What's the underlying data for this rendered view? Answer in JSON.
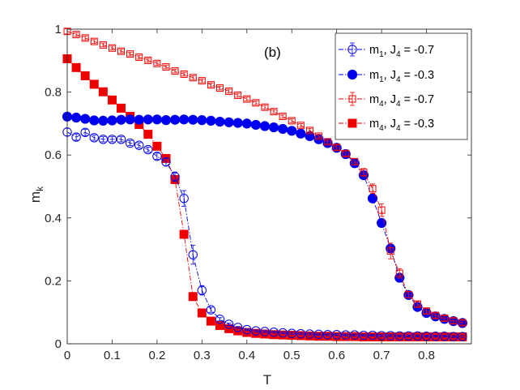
{
  "chart_data": {
    "type": "line",
    "panel_label": "(b)",
    "xlabel": "T",
    "ylabel": {
      "main": "m",
      "sub": "k"
    },
    "xlim": [
      0,
      0.9
    ],
    "ylim": [
      0,
      1
    ],
    "xticks": [
      0,
      0.1,
      0.2,
      0.3,
      0.4,
      0.5,
      0.6,
      0.7,
      0.8
    ],
    "yticks": [
      0,
      0.2,
      0.4,
      0.6,
      0.8,
      1
    ],
    "xtick_labels": [
      "0",
      "0.1",
      "0.2",
      "0.3",
      "0.4",
      "0.5",
      "0.6",
      "0.7",
      "0.8"
    ],
    "ytick_labels": [
      "0",
      "0.2",
      "0.4",
      "0.6",
      "0.8",
      "1"
    ],
    "legend_position": "top-right",
    "colors": {
      "blue": "#0000ee",
      "red": "#ee0000",
      "axis": "#262626"
    },
    "series": [
      {
        "name": "m1, J4 = -0.7",
        "legend": {
          "m": "m",
          "m_sub": "1",
          "mid": ", J",
          "j_sub": "4",
          "tail": " = -0.7"
        },
        "color": "#0000ee",
        "marker": "circle",
        "filled": false,
        "x": [
          0.0,
          0.02,
          0.04,
          0.06,
          0.08,
          0.1,
          0.12,
          0.14,
          0.16,
          0.18,
          0.2,
          0.22,
          0.24,
          0.26,
          0.28,
          0.3,
          0.32,
          0.34,
          0.36,
          0.38,
          0.4,
          0.42,
          0.44,
          0.46,
          0.48,
          0.5,
          0.52,
          0.54,
          0.56,
          0.58,
          0.6,
          0.62,
          0.64,
          0.66,
          0.68,
          0.7,
          0.72,
          0.74,
          0.76,
          0.78,
          0.8,
          0.82,
          0.84,
          0.86,
          0.88
        ],
        "y": [
          0.673,
          0.657,
          0.672,
          0.655,
          0.65,
          0.65,
          0.65,
          0.638,
          0.631,
          0.617,
          0.596,
          0.578,
          0.531,
          0.462,
          0.283,
          0.17,
          0.108,
          0.078,
          0.062,
          0.052,
          0.045,
          0.041,
          0.039,
          0.037,
          0.035,
          0.033,
          0.032,
          0.031,
          0.03,
          0.029,
          0.029,
          0.028,
          0.028,
          0.027,
          0.027,
          0.026,
          0.026,
          0.025,
          0.025,
          0.025,
          0.024,
          0.024,
          0.024,
          0.023,
          0.023
        ],
        "err": [
          0.012,
          0.01,
          0.01,
          0.008,
          0.008,
          0.008,
          0.008,
          0.008,
          0.008,
          0.008,
          0.01,
          0.012,
          0.015,
          0.025,
          0.03,
          0.015,
          0.008,
          0.005,
          0.004,
          0.003,
          0.003,
          0.003,
          0.003,
          0.003,
          0.003,
          0.003,
          0.003,
          0.003,
          0.003,
          0.003,
          0.003,
          0.003,
          0.003,
          0.003,
          0.003,
          0.003,
          0.003,
          0.003,
          0.003,
          0.003,
          0.003,
          0.003,
          0.003,
          0.003,
          0.003
        ]
      },
      {
        "name": "m1, J4 = -0.3",
        "legend": {
          "m": "m",
          "m_sub": "1",
          "mid": ", J",
          "j_sub": "4",
          "tail": " = -0.3"
        },
        "color": "#0000ee",
        "marker": "circle",
        "filled": true,
        "x": [
          0.0,
          0.02,
          0.04,
          0.06,
          0.08,
          0.1,
          0.12,
          0.14,
          0.16,
          0.18,
          0.2,
          0.22,
          0.24,
          0.26,
          0.28,
          0.3,
          0.32,
          0.34,
          0.36,
          0.38,
          0.4,
          0.42,
          0.44,
          0.46,
          0.48,
          0.5,
          0.52,
          0.54,
          0.56,
          0.58,
          0.6,
          0.62,
          0.64,
          0.66,
          0.68,
          0.7,
          0.72,
          0.74,
          0.76,
          0.78,
          0.8,
          0.82,
          0.84,
          0.86,
          0.88
        ],
        "y": [
          0.722,
          0.719,
          0.715,
          0.71,
          0.709,
          0.71,
          0.712,
          0.713,
          0.712,
          0.713,
          0.713,
          0.711,
          0.712,
          0.713,
          0.712,
          0.711,
          0.709,
          0.706,
          0.704,
          0.702,
          0.7,
          0.696,
          0.692,
          0.688,
          0.683,
          0.677,
          0.668,
          0.66,
          0.65,
          0.638,
          0.623,
          0.603,
          0.574,
          0.536,
          0.462,
          0.384,
          0.303,
          0.21,
          0.155,
          0.117,
          0.098,
          0.087,
          0.079,
          0.072,
          0.066
        ],
        "err": []
      },
      {
        "name": "m4, J4 = -0.7",
        "legend": {
          "m": "m",
          "m_sub": "4",
          "mid": ", J",
          "j_sub": "4",
          "tail": " = -0.7"
        },
        "color": "#ee0000",
        "marker": "square",
        "filled": false,
        "x": [
          0.0,
          0.02,
          0.04,
          0.06,
          0.08,
          0.1,
          0.12,
          0.14,
          0.16,
          0.18,
          0.2,
          0.22,
          0.24,
          0.26,
          0.28,
          0.3,
          0.32,
          0.34,
          0.36,
          0.38,
          0.4,
          0.42,
          0.44,
          0.46,
          0.48,
          0.5,
          0.52,
          0.54,
          0.56,
          0.58,
          0.6,
          0.62,
          0.64,
          0.66,
          0.68,
          0.7,
          0.72,
          0.74,
          0.76,
          0.78,
          0.8,
          0.82,
          0.84,
          0.86,
          0.88
        ],
        "y": [
          0.993,
          0.983,
          0.972,
          0.961,
          0.95,
          0.94,
          0.93,
          0.921,
          0.911,
          0.901,
          0.891,
          0.88,
          0.867,
          0.857,
          0.846,
          0.836,
          0.823,
          0.813,
          0.803,
          0.79,
          0.778,
          0.766,
          0.752,
          0.738,
          0.723,
          0.709,
          0.694,
          0.678,
          0.66,
          0.642,
          0.624,
          0.605,
          0.579,
          0.545,
          0.493,
          0.425,
          0.295,
          0.224,
          0.156,
          0.126,
          0.104,
          0.09,
          0.081,
          0.073,
          0.067
        ],
        "err": [
          0.008,
          0.006,
          0.006,
          0.006,
          0.006,
          0.006,
          0.006,
          0.006,
          0.006,
          0.006,
          0.006,
          0.006,
          0.006,
          0.006,
          0.006,
          0.006,
          0.006,
          0.006,
          0.006,
          0.006,
          0.006,
          0.006,
          0.006,
          0.006,
          0.006,
          0.006,
          0.006,
          0.006,
          0.006,
          0.006,
          0.008,
          0.008,
          0.01,
          0.012,
          0.015,
          0.02,
          0.025,
          0.015,
          0.01,
          0.008,
          0.008,
          0.008,
          0.008,
          0.008,
          0.008
        ]
      },
      {
        "name": "m4, J4 = -0.3",
        "legend": {
          "m": "m",
          "m_sub": "4",
          "mid": ", J",
          "j_sub": "4",
          "tail": " = -0.3"
        },
        "color": "#ee0000",
        "marker": "square",
        "filled": true,
        "x": [
          0.0,
          0.02,
          0.04,
          0.06,
          0.08,
          0.1,
          0.12,
          0.14,
          0.16,
          0.18,
          0.2,
          0.22,
          0.24,
          0.26,
          0.28,
          0.3,
          0.32,
          0.34,
          0.36,
          0.38,
          0.4,
          0.42,
          0.44,
          0.46,
          0.48,
          0.5,
          0.52,
          0.54,
          0.56,
          0.58,
          0.6,
          0.62,
          0.64,
          0.66,
          0.68,
          0.7,
          0.72,
          0.74,
          0.76,
          0.78,
          0.8,
          0.82,
          0.84,
          0.86,
          0.88
        ],
        "y": [
          0.906,
          0.878,
          0.852,
          0.825,
          0.801,
          0.775,
          0.749,
          0.723,
          0.697,
          0.666,
          0.628,
          0.589,
          0.522,
          0.348,
          0.15,
          0.098,
          0.072,
          0.058,
          0.048,
          0.041,
          0.036,
          0.033,
          0.031,
          0.029,
          0.028,
          0.027,
          0.026,
          0.025,
          0.024,
          0.024,
          0.023,
          0.023,
          0.023,
          0.022,
          0.022,
          0.022,
          0.022,
          0.022,
          0.022,
          0.022,
          0.022,
          0.022,
          0.022,
          0.022,
          0.022
        ],
        "err": []
      }
    ]
  }
}
